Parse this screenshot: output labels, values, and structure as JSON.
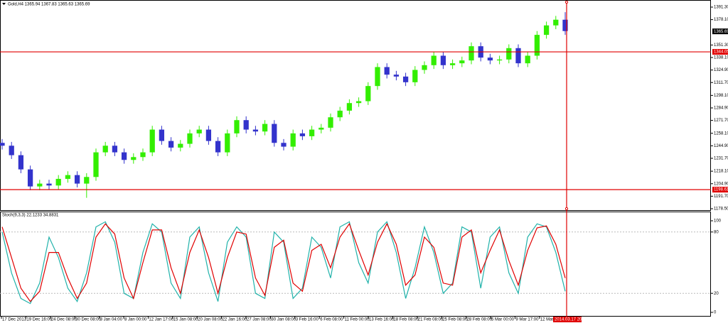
{
  "chart_data": [
    {
      "type": "candlestick",
      "title": "Gold,H4 1365.94 1367.83 1365.63 1365.69",
      "open": [
        1248,
        1245,
        1235,
        1220,
        1202,
        1205,
        1203,
        1210,
        1214,
        1205,
        1212,
        1238,
        1245,
        1238,
        1230,
        1233,
        1238,
        1262,
        1250,
        1243,
        1247,
        1258,
        1262,
        1250,
        1238,
        1258,
        1272,
        1262,
        1260,
        1268,
        1248,
        1244,
        1258,
        1255,
        1262,
        1264,
        1275,
        1282,
        1290,
        1292,
        1308,
        1328,
        1320,
        1318,
        1312,
        1325,
        1330,
        1340,
        1330,
        1332,
        1335,
        1350,
        1338,
        1335,
        1336,
        1348,
        1332,
        1340,
        1362,
        1372,
        1378
      ],
      "high": [
        1252,
        1249,
        1239,
        1224,
        1209,
        1209,
        1214,
        1218,
        1218,
        1216,
        1242,
        1249,
        1249,
        1242,
        1237,
        1242,
        1266,
        1266,
        1254,
        1251,
        1262,
        1266,
        1266,
        1254,
        1262,
        1276,
        1276,
        1266,
        1272,
        1272,
        1252,
        1262,
        1262,
        1266,
        1268,
        1279,
        1286,
        1294,
        1296,
        1312,
        1332,
        1332,
        1324,
        1322,
        1329,
        1334,
        1344,
        1344,
        1336,
        1339,
        1354,
        1354,
        1342,
        1340,
        1352,
        1352,
        1344,
        1366,
        1376,
        1382,
        1386
      ],
      "low": [
        1241,
        1231,
        1216,
        1198,
        1198,
        1199,
        1199,
        1206,
        1201,
        1190,
        1208,
        1234,
        1234,
        1226,
        1226,
        1229,
        1234,
        1246,
        1239,
        1239,
        1243,
        1254,
        1246,
        1234,
        1234,
        1254,
        1258,
        1256,
        1256,
        1244,
        1240,
        1240,
        1251,
        1251,
        1258,
        1260,
        1271,
        1278,
        1286,
        1288,
        1304,
        1316,
        1314,
        1308,
        1308,
        1321,
        1326,
        1326,
        1326,
        1328,
        1331,
        1334,
        1331,
        1331,
        1332,
        1328,
        1328,
        1336,
        1358,
        1368,
        1362
      ],
      "close": [
        1245,
        1235,
        1220,
        1202,
        1205,
        1203,
        1210,
        1214,
        1205,
        1212,
        1238,
        1245,
        1238,
        1230,
        1233,
        1238,
        1262,
        1250,
        1243,
        1247,
        1258,
        1262,
        1250,
        1238,
        1258,
        1272,
        1262,
        1260,
        1268,
        1248,
        1244,
        1258,
        1255,
        1262,
        1264,
        1275,
        1282,
        1290,
        1292,
        1308,
        1328,
        1320,
        1318,
        1312,
        1325,
        1330,
        1340,
        1330,
        1332,
        1335,
        1350,
        1338,
        1335,
        1336,
        1348,
        1332,
        1340,
        1362,
        1372,
        1378,
        1366
      ],
      "up_color": "#33ee00",
      "down_color": "#3333cc",
      "ylim": [
        1178.5,
        1391.3
      ],
      "yticks": [
        {
          "value": 1391.3,
          "label": "1391.30"
        },
        {
          "value": 1378.1,
          "label": "1378.10"
        },
        {
          "value": 1351.3,
          "label": "1351.30"
        },
        {
          "value": 1338.1,
          "label": "1338.10"
        },
        {
          "value": 1324.9,
          "label": "1324.90"
        },
        {
          "value": 1311.7,
          "label": "1311.70"
        },
        {
          "value": 1298.1,
          "label": "1298.10"
        },
        {
          "value": 1284.9,
          "label": "1284.90"
        },
        {
          "value": 1271.7,
          "label": "1271.70"
        },
        {
          "value": 1258.1,
          "label": "1258.10"
        },
        {
          "value": 1244.9,
          "label": "1244.90"
        },
        {
          "value": 1231.7,
          "label": "1231.70"
        },
        {
          "value": 1218.1,
          "label": "1218.10"
        },
        {
          "value": 1204.9,
          "label": "1204.90"
        },
        {
          "value": 1191.7,
          "label": "1191.70"
        },
        {
          "value": 1178.5,
          "label": "1178.50"
        }
      ],
      "current_price": 1365.69,
      "hlines": [
        1344.05,
        1198.61
      ],
      "hline_color": "#e00000"
    },
    {
      "type": "line",
      "title": "Stoch(9,3,3) 22.1233 34.8831",
      "series": [
        {
          "color": "#20b2aa",
          "values": [
            80,
            40,
            15,
            10,
            30,
            75,
            55,
            25,
            12,
            40,
            85,
            90,
            70,
            20,
            15,
            60,
            88,
            80,
            30,
            15,
            75,
            85,
            40,
            12,
            70,
            85,
            75,
            20,
            15,
            80,
            70,
            15,
            25,
            75,
            65,
            35,
            85,
            90,
            50,
            30,
            80,
            90,
            60,
            15,
            45,
            85,
            60,
            20,
            30,
            85,
            80,
            25,
            75,
            85,
            40,
            20,
            75,
            88,
            85,
            60,
            22
          ]
        },
        {
          "color": "#e00000",
          "values": [
            85,
            55,
            25,
            12,
            22,
            60,
            60,
            35,
            15,
            30,
            75,
            88,
            78,
            35,
            15,
            50,
            82,
            82,
            45,
            20,
            60,
            82,
            55,
            20,
            55,
            80,
            78,
            35,
            18,
            65,
            72,
            30,
            22,
            62,
            68,
            45,
            75,
            88,
            62,
            38,
            70,
            88,
            68,
            28,
            38,
            75,
            65,
            30,
            28,
            75,
            82,
            40,
            62,
            82,
            52,
            28,
            62,
            84,
            86,
            68,
            35
          ]
        }
      ],
      "ylim": [
        0,
        100
      ],
      "yticks": [
        100,
        80,
        20,
        0
      ],
      "levels": [
        80,
        20
      ],
      "xlabels": [
        "17 Dec 2013",
        "19 Dec 16:00",
        "24 Dec 08:00",
        "30 Dec 08:00",
        "3 Jan 04:00",
        "8 Jan 00:00",
        "12 Jan 17:00",
        "15 Jan 08:00",
        "20 Jan 08:00",
        "22 Jan 16:00",
        "27 Jan 08:00",
        "30 Jan 08:00",
        "3 Feb 16:00",
        "6 Feb 08:00",
        "11 Feb 00:00",
        "13 Feb 16:00",
        "18 Feb 08:00",
        "21 Feb 08:00",
        "25 Feb 08:00",
        "28 Feb 08:00",
        "5 Mar 00:00",
        "9 Mar 17:00",
        "12 Mar 08:00"
      ],
      "cursor_label": "2014.03.17 20:00"
    }
  ]
}
